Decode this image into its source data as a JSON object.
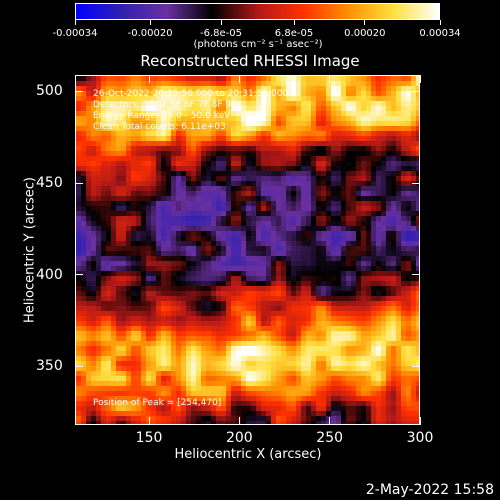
{
  "colorbar": {
    "tick_labels": [
      "-0.00034",
      "-0.00020",
      "-6.8e-05",
      "6.8e-05",
      "0.00020",
      "0.00034"
    ],
    "tick_values": [
      -0.00034,
      -0.0002,
      -6.8e-05,
      6.8e-05,
      0.0002,
      0.00034
    ],
    "range": [
      -0.00034,
      0.00034
    ],
    "units_label": "(photons cm⁻² s⁻¹ asec⁻²)"
  },
  "title": "Reconstructed RHESSI Image",
  "info": {
    "time_range": "26-Oct-2022 20:25:56.000 to 20:31:56.000",
    "detectors": "Detectors: 3F 4F 5F 6F 7F 8F 9F",
    "energy": "Energy Range: 25.0 - 50.0 keV",
    "method": "Clean    Total counts: 6.11e+03",
    "peak": "Position of Peak = [254,470]"
  },
  "x_axis": {
    "label": "Heliocentric X (arcsec)",
    "ticks": [
      "150",
      "200",
      "250",
      "300"
    ],
    "tick_values": [
      150,
      200,
      250,
      300
    ],
    "range": [
      109,
      300
    ]
  },
  "y_axis": {
    "label": "Heliocentric Y (arcsec)",
    "ticks": [
      "350",
      "400",
      "450",
      "500"
    ],
    "tick_values": [
      350,
      400,
      450,
      500
    ],
    "range": [
      318,
      509
    ]
  },
  "datestamp": "2-May-2022 15:58",
  "colors": {
    "background": "#000000",
    "foreground": "#ffffff",
    "colormap": [
      "#0000ff",
      "#3020b0",
      "#6a30a0",
      "#000000",
      "#b01818",
      "#ff3000",
      "#ff9000",
      "#ffe040",
      "#ffffff"
    ]
  }
}
